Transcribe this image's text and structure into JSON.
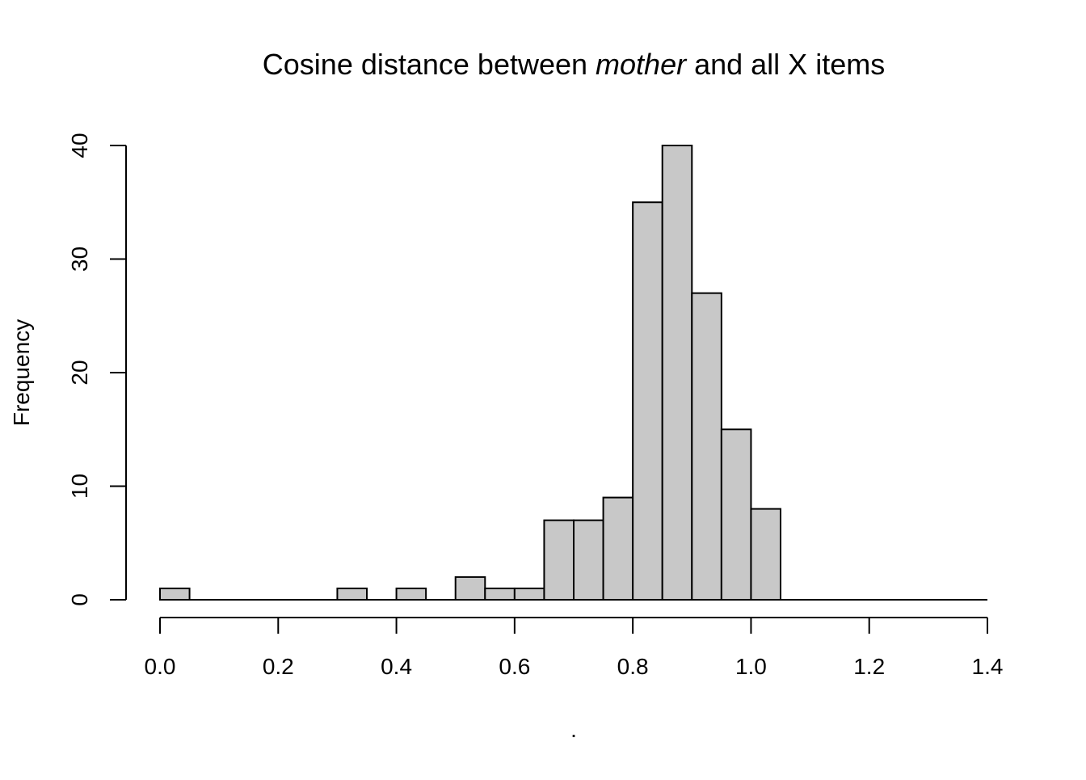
{
  "chart_data": {
    "type": "bar",
    "title": {
      "prefix": "Cosine distance between ",
      "emphasis": "mother",
      "suffix": " and all X items"
    },
    "xlabel": ".",
    "ylabel": "Frequency",
    "bin_width": 0.05,
    "bins": [
      {
        "from": 0.0,
        "to": 0.05,
        "count": 1
      },
      {
        "from": 0.05,
        "to": 0.1,
        "count": 0
      },
      {
        "from": 0.1,
        "to": 0.15,
        "count": 0
      },
      {
        "from": 0.15,
        "to": 0.2,
        "count": 0
      },
      {
        "from": 0.2,
        "to": 0.25,
        "count": 0
      },
      {
        "from": 0.25,
        "to": 0.3,
        "count": 0
      },
      {
        "from": 0.3,
        "to": 0.35,
        "count": 1
      },
      {
        "from": 0.35,
        "to": 0.4,
        "count": 0
      },
      {
        "from": 0.4,
        "to": 0.45,
        "count": 1
      },
      {
        "from": 0.45,
        "to": 0.5,
        "count": 0
      },
      {
        "from": 0.5,
        "to": 0.55,
        "count": 2
      },
      {
        "from": 0.55,
        "to": 0.6,
        "count": 1
      },
      {
        "from": 0.6,
        "to": 0.65,
        "count": 1
      },
      {
        "from": 0.65,
        "to": 0.7,
        "count": 7
      },
      {
        "from": 0.7,
        "to": 0.75,
        "count": 7
      },
      {
        "from": 0.75,
        "to": 0.8,
        "count": 9
      },
      {
        "from": 0.8,
        "to": 0.85,
        "count": 35
      },
      {
        "from": 0.85,
        "to": 0.9,
        "count": 40
      },
      {
        "from": 0.9,
        "to": 0.95,
        "count": 27
      },
      {
        "from": 0.95,
        "to": 1.0,
        "count": 15
      },
      {
        "from": 1.0,
        "to": 1.05,
        "count": 8
      },
      {
        "from": 1.05,
        "to": 1.1,
        "count": 0
      },
      {
        "from": 1.1,
        "to": 1.15,
        "count": 0
      },
      {
        "from": 1.15,
        "to": 1.2,
        "count": 0
      },
      {
        "from": 1.2,
        "to": 1.25,
        "count": 0
      },
      {
        "from": 1.25,
        "to": 1.3,
        "count": 0
      },
      {
        "from": 1.3,
        "to": 1.35,
        "count": 0
      },
      {
        "from": 1.35,
        "to": 1.4,
        "count": 0
      }
    ],
    "xlim": [
      0,
      1.4
    ],
    "ylim": [
      0,
      40
    ],
    "x_ticks": [
      {
        "value": 0.0,
        "label": "0.0"
      },
      {
        "value": 0.2,
        "label": "0.2"
      },
      {
        "value": 0.4,
        "label": "0.4"
      },
      {
        "value": 0.6,
        "label": "0.6"
      },
      {
        "value": 0.8,
        "label": "0.8"
      },
      {
        "value": 1.0,
        "label": "1.0"
      },
      {
        "value": 1.2,
        "label": "1.2"
      },
      {
        "value": 1.4,
        "label": "1.4"
      }
    ],
    "y_ticks": [
      {
        "value": 0,
        "label": "0"
      },
      {
        "value": 10,
        "label": "10"
      },
      {
        "value": 20,
        "label": "20"
      },
      {
        "value": 30,
        "label": "30"
      },
      {
        "value": 40,
        "label": "40"
      }
    ],
    "grid": false,
    "bar_fill": "#c8c8c8",
    "bar_stroke": "#000000"
  }
}
